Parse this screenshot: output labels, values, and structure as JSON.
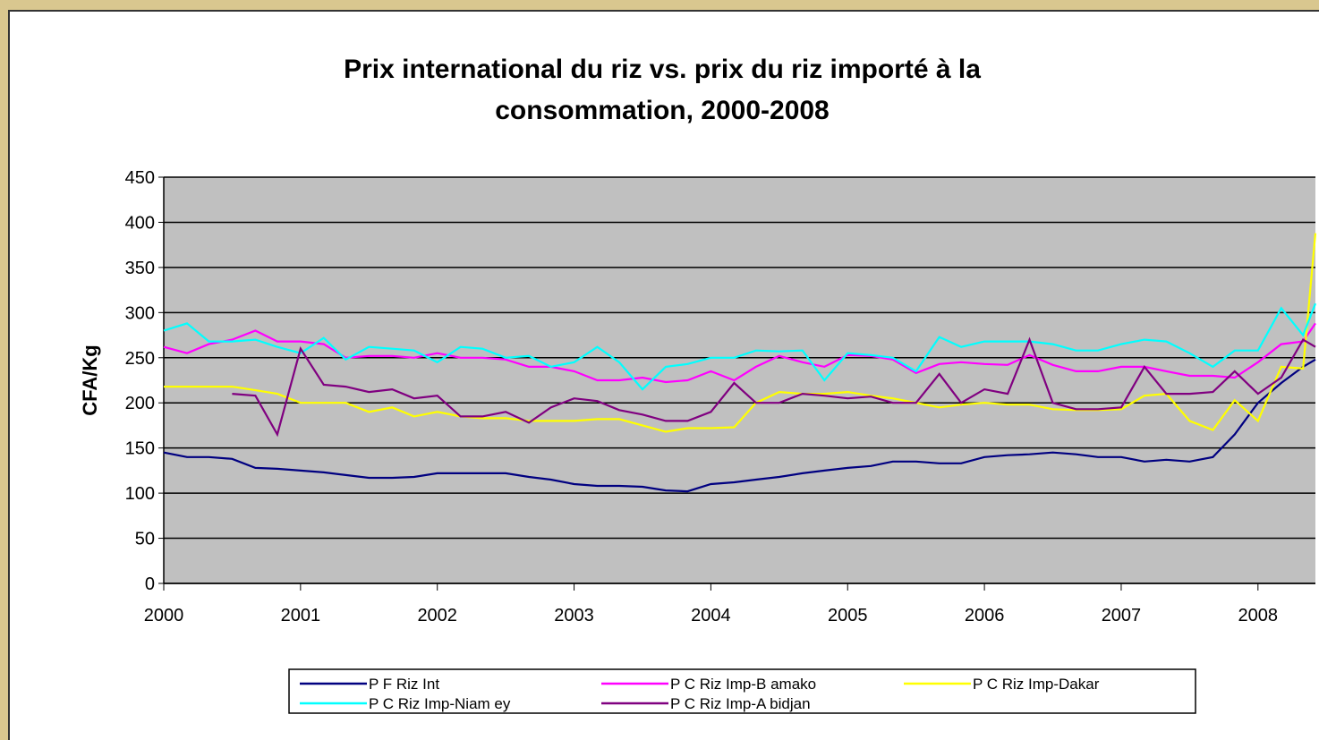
{
  "chart_data": {
    "type": "line",
    "title": [
      "Prix international du riz vs. prix du riz importé à la",
      "consommation, 2000-2008"
    ],
    "y_label": "CFA/Kg",
    "xlim": [
      2000,
      2008.42
    ],
    "xticks": [
      2000,
      2001,
      2002,
      2003,
      2004,
      2005,
      2006,
      2007,
      2008
    ],
    "ylim": [
      0,
      450
    ],
    "yticks": [
      0,
      50,
      100,
      150,
      200,
      250,
      300,
      350,
      400,
      450
    ],
    "grid": true,
    "x": [
      2000,
      2000.17,
      2000.33,
      2000.5,
      2000.67,
      2000.83,
      2001,
      2001.17,
      2001.33,
      2001.5,
      2001.67,
      2001.83,
      2002,
      2002.17,
      2002.33,
      2002.5,
      2002.67,
      2002.83,
      2003,
      2003.17,
      2003.33,
      2003.5,
      2003.67,
      2003.83,
      2004,
      2004.17,
      2004.33,
      2004.5,
      2004.67,
      2004.83,
      2005,
      2005.17,
      2005.33,
      2005.5,
      2005.67,
      2005.83,
      2006,
      2006.17,
      2006.33,
      2006.5,
      2006.67,
      2006.83,
      2007,
      2007.17,
      2007.33,
      2007.5,
      2007.67,
      2007.83,
      2008,
      2008.17,
      2008.33,
      2008.42
    ],
    "series": [
      {
        "name": "P F Riz Int",
        "color": "#000080",
        "values": [
          145,
          140,
          140,
          138,
          128,
          127,
          125,
          123,
          120,
          117,
          117,
          118,
          122,
          122,
          122,
          122,
          118,
          115,
          110,
          108,
          108,
          107,
          103,
          102,
          110,
          112,
          115,
          118,
          122,
          125,
          128,
          130,
          135,
          135,
          133,
          133,
          140,
          142,
          143,
          145,
          143,
          140,
          140,
          135,
          137,
          135,
          140,
          165,
          200,
          222,
          240,
          248
        ]
      },
      {
        "name": "P C Riz Imp-B amako",
        "color": "#ff00ff",
        "values": [
          262,
          255,
          265,
          270,
          280,
          268,
          268,
          265,
          250,
          252,
          252,
          250,
          255,
          250,
          250,
          248,
          240,
          240,
          235,
          225,
          225,
          228,
          223,
          225,
          235,
          225,
          240,
          252,
          245,
          240,
          253,
          252,
          248,
          233,
          243,
          245,
          243,
          242,
          253,
          242,
          235,
          235,
          240,
          240,
          235,
          230,
          230,
          228,
          245,
          265,
          268,
          288
        ]
      },
      {
        "name": "P C Riz Imp-Dakar",
        "color": "#ffff00",
        "values": [
          218,
          218,
          218,
          218,
          214,
          210,
          200,
          200,
          200,
          190,
          195,
          185,
          190,
          185,
          183,
          183,
          180,
          180,
          180,
          182,
          182,
          175,
          168,
          172,
          172,
          173,
          200,
          212,
          210,
          210,
          212,
          208,
          205,
          200,
          195,
          198,
          200,
          198,
          198,
          193,
          192,
          192,
          193,
          208,
          210,
          180,
          170,
          203,
          180,
          240,
          238,
          388
        ]
      },
      {
        "name": "P C Riz Imp-Niam ey",
        "color": "#00ffff",
        "values": [
          280,
          288,
          268,
          268,
          270,
          262,
          255,
          272,
          248,
          262,
          260,
          258,
          245,
          262,
          260,
          250,
          252,
          240,
          245,
          262,
          245,
          215,
          240,
          243,
          250,
          250,
          258,
          257,
          258,
          225,
          255,
          253,
          250,
          235,
          273,
          262,
          268,
          268,
          268,
          265,
          258,
          258,
          265,
          270,
          268,
          255,
          240,
          258,
          258,
          305,
          275,
          310
        ]
      },
      {
        "name": "P C Riz Imp-A bidjan",
        "color": "#800080",
        "values": [
          null,
          null,
          null,
          210,
          208,
          165,
          260,
          220,
          218,
          212,
          215,
          205,
          208,
          185,
          185,
          190,
          178,
          195,
          205,
          202,
          192,
          187,
          180,
          180,
          190,
          222,
          200,
          200,
          210,
          208,
          205,
          207,
          200,
          200,
          232,
          200,
          215,
          210,
          270,
          200,
          193,
          193,
          195,
          240,
          210,
          210,
          212,
          235,
          210,
          228,
          270,
          262
        ]
      }
    ]
  }
}
